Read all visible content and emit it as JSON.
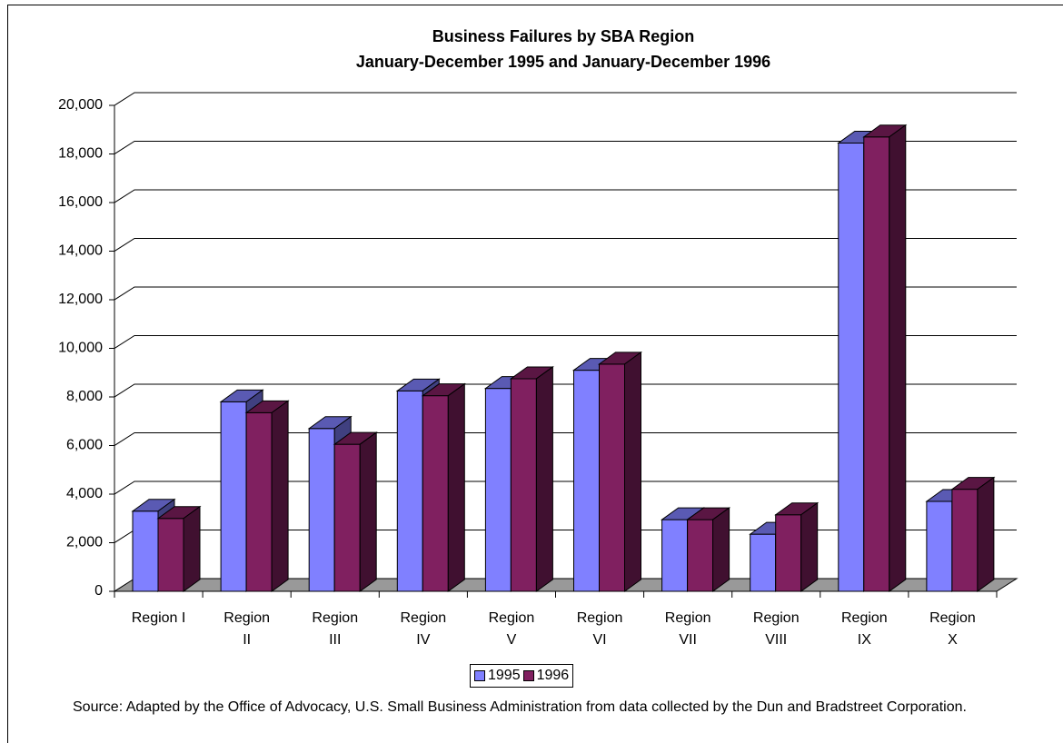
{
  "chart_data": {
    "type": "bar3d",
    "title": "Business Failures by SBA Region",
    "subtitle": "January-December 1995 and January-December 1996",
    "categories": [
      "Region I",
      "Region II",
      "Region III",
      "Region IV",
      "Region V",
      "Region VI",
      "Region VII",
      "Region VIII",
      "Region IX",
      "Region X"
    ],
    "series": [
      {
        "name": "1995",
        "color": "#8080ff",
        "values": [
          3300,
          7800,
          6700,
          8250,
          8350,
          9100,
          2950,
          2350,
          18450,
          3700
        ]
      },
      {
        "name": "1996",
        "color": "#802060",
        "values": [
          3000,
          7350,
          6050,
          8050,
          8750,
          9350,
          2950,
          3150,
          18700,
          4200
        ]
      }
    ],
    "ylim": [
      0,
      20000
    ],
    "yticks": [
      {
        "value": 0,
        "label": "0"
      },
      {
        "value": 2000,
        "label": "2,000"
      },
      {
        "value": 4000,
        "label": "4,000"
      },
      {
        "value": 6000,
        "label": "6,000"
      },
      {
        "value": 8000,
        "label": "8,000"
      },
      {
        "value": 10000,
        "label": "10,000"
      },
      {
        "value": 12000,
        "label": "12,000"
      },
      {
        "value": 14000,
        "label": "14,000"
      },
      {
        "value": 16000,
        "label": "16,000"
      },
      {
        "value": 18000,
        "label": "18,000"
      },
      {
        "value": 20000,
        "label": "20,000"
      }
    ],
    "grid": true,
    "legend": "bottom",
    "source": "Source:  Adapted by the Office of Advocacy, U.S. Small Business Administration from data collected by the Dun and Bradstreet Corporation."
  }
}
